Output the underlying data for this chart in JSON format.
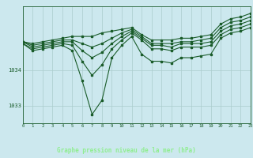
{
  "background_color": "#cce8ee",
  "plot_bg_color": "#cce8ee",
  "grid_color": "#aacccc",
  "line_color": "#1a5c2a",
  "bottom_bar_color": "#2a6e3a",
  "title": "Graphe pression niveau de la mer (hPa)",
  "xlim": [
    0,
    23
  ],
  "ylim": [
    1032.5,
    1035.8
  ],
  "yticks": [
    1033,
    1034
  ],
  "xticks": [
    0,
    1,
    2,
    3,
    4,
    5,
    6,
    7,
    8,
    9,
    10,
    11,
    12,
    13,
    14,
    15,
    16,
    17,
    18,
    19,
    20,
    21,
    22,
    23
  ],
  "hours": [
    0,
    1,
    2,
    3,
    4,
    5,
    6,
    7,
    8,
    9,
    10,
    11,
    12,
    13,
    14,
    15,
    16,
    17,
    18,
    19,
    20,
    21,
    22,
    23
  ],
  "line1": [
    1034.8,
    1034.75,
    1034.8,
    1034.85,
    1034.9,
    1034.95,
    1034.95,
    1034.95,
    1035.05,
    1035.1,
    1035.15,
    1035.2,
    1035.0,
    1034.85,
    1034.85,
    1034.85,
    1034.9,
    1034.9,
    1034.95,
    1035.0,
    1035.3,
    1035.45,
    1035.5,
    1035.6
  ],
  "line2": [
    1034.8,
    1034.7,
    1034.75,
    1034.8,
    1034.85,
    1034.85,
    1034.75,
    1034.65,
    1034.75,
    1034.9,
    1035.05,
    1035.15,
    1034.95,
    1034.75,
    1034.75,
    1034.75,
    1034.8,
    1034.8,
    1034.85,
    1034.9,
    1035.2,
    1035.35,
    1035.4,
    1035.5
  ],
  "line3": [
    1034.8,
    1034.65,
    1034.7,
    1034.75,
    1034.8,
    1034.8,
    1034.55,
    1034.35,
    1034.5,
    1034.75,
    1034.95,
    1035.1,
    1034.9,
    1034.7,
    1034.7,
    1034.65,
    1034.75,
    1034.75,
    1034.75,
    1034.8,
    1035.1,
    1035.25,
    1035.3,
    1035.4
  ],
  "line4": [
    1034.75,
    1034.6,
    1034.65,
    1034.7,
    1034.75,
    1034.7,
    1034.25,
    1033.85,
    1034.15,
    1034.6,
    1034.85,
    1035.05,
    1034.85,
    1034.6,
    1034.6,
    1034.55,
    1034.65,
    1034.65,
    1034.65,
    1034.7,
    1035.0,
    1035.15,
    1035.2,
    1035.3
  ],
  "line5": [
    1034.75,
    1034.55,
    1034.6,
    1034.65,
    1034.7,
    1034.55,
    1033.7,
    1032.75,
    1033.15,
    1034.35,
    1034.7,
    1034.95,
    1034.45,
    1034.25,
    1034.25,
    1034.2,
    1034.35,
    1034.35,
    1034.4,
    1034.45,
    1034.9,
    1035.05,
    1035.1,
    1035.2
  ]
}
